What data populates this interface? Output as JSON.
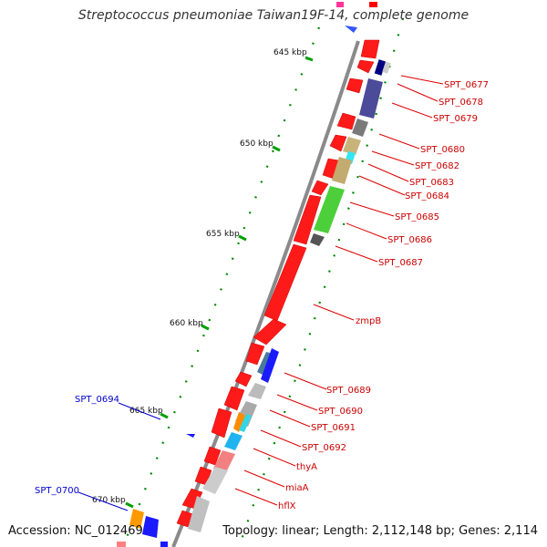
{
  "title": "Streptococcus pneumoniae Taiwan19F-14, complete genome",
  "footer": {
    "accession": "Accession: NC_012469",
    "summary": "Topology: linear; Length: 2,112,148 bp; Genes: 2,114"
  },
  "colors": {
    "backbone": "#888888",
    "gene_forward": "#ff0000",
    "label_red": "#cc0000",
    "label_blue": "#0000cc",
    "tick": "#00a000",
    "gc_dot": "#006600"
  },
  "ruler": [
    {
      "label": "645 kbp"
    },
    {
      "label": "650 kbp"
    },
    {
      "label": "655 kbp"
    },
    {
      "label": "660 kbp"
    },
    {
      "label": "665 kbp"
    },
    {
      "label": "670 kbp"
    }
  ],
  "gene_labels_right": [
    "SPT_0677",
    "SPT_0678",
    "SPT_0679",
    "SPT_0680",
    "SPT_0682",
    "SPT_0683",
    "SPT_0684",
    "SPT_0685",
    "SPT_0686",
    "SPT_0687",
    "zmpB",
    "SPT_0689",
    "SPT_0690",
    "SPT_0691",
    "SPT_0692",
    "thyA",
    "miaA",
    "hflX"
  ],
  "gene_labels_left": [
    "SPT_0694",
    "SPT_0700"
  ]
}
